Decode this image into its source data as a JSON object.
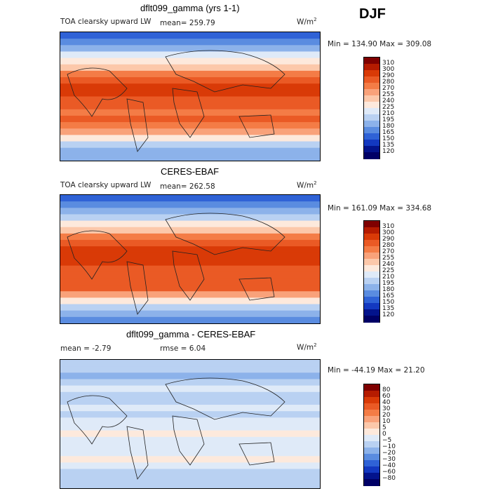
{
  "header": {
    "season": "DJF"
  },
  "units": "W/m",
  "units_exp": "2",
  "panels": [
    {
      "title": "dflt099_gamma (yrs 1-1)",
      "field_label": "TOA clearsky upward LW",
      "stat_text": "mean= 259.79",
      "minmax_text": "Min = 134.90 Max = 309.08"
    },
    {
      "title": "CERES-EBAF",
      "field_label": "TOA clearsky upward LW",
      "stat_text": "mean= 262.58",
      "minmax_text": "Min = 161.09 Max = 334.68"
    },
    {
      "title": "dflt099_gamma - CERES-EBAF",
      "mean_text": "mean =   -2.79",
      "rmse_text": "rmse =    6.04",
      "minmax_text": "Min = -44.19 Max =  21.20"
    }
  ],
  "chart_data": [
    {
      "type": "heatmap",
      "title": "dflt099_gamma (yrs 1-1)",
      "subtitle": "TOA clearsky upward LW",
      "mean": 259.79,
      "min": 134.9,
      "max": 309.08,
      "levels": [
        "310",
        "300",
        "290",
        "280",
        "270",
        "255",
        "240",
        "225",
        "210",
        "195",
        "180",
        "165",
        "150",
        "135",
        "120"
      ],
      "colors": [
        "#7f0000",
        "#b51b00",
        "#d93a07",
        "#ea5a25",
        "#f47c46",
        "#f9a27a",
        "#fcc8aa",
        "#fde9dc",
        "#dfeaf8",
        "#b9d1f2",
        "#8cb2ea",
        "#5a8ce0",
        "#2f62d6",
        "#1338c0",
        "#03138c",
        "#000066"
      ]
    },
    {
      "type": "heatmap",
      "title": "CERES-EBAF",
      "subtitle": "TOA clearsky upward LW",
      "mean": 262.58,
      "min": 161.09,
      "max": 334.68,
      "levels": [
        "310",
        "300",
        "290",
        "280",
        "270",
        "255",
        "240",
        "225",
        "210",
        "195",
        "180",
        "165",
        "150",
        "135",
        "120"
      ],
      "colors": [
        "#7f0000",
        "#b51b00",
        "#d93a07",
        "#ea5a25",
        "#f47c46",
        "#f9a27a",
        "#fcc8aa",
        "#fde9dc",
        "#dfeaf8",
        "#b9d1f2",
        "#8cb2ea",
        "#5a8ce0",
        "#2f62d6",
        "#1338c0",
        "#03138c",
        "#000066"
      ]
    },
    {
      "type": "heatmap",
      "title": "dflt099_gamma - CERES-EBAF",
      "mean": -2.79,
      "rmse": 6.04,
      "min": -44.19,
      "max": 21.2,
      "levels": [
        "80",
        "60",
        "40",
        "30",
        "20",
        "10",
        "5",
        "0",
        "−5",
        "−10",
        "−20",
        "−30",
        "−40",
        "−60",
        "−80"
      ],
      "colors": [
        "#7f0000",
        "#b51b00",
        "#d93a07",
        "#ea5a25",
        "#f47c46",
        "#f9a27a",
        "#fcc8aa",
        "#fde9dc",
        "#dfeaf8",
        "#b9d1f2",
        "#8cb2ea",
        "#5a8ce0",
        "#2f62d6",
        "#1338c0",
        "#03138c",
        "#000066"
      ]
    }
  ]
}
